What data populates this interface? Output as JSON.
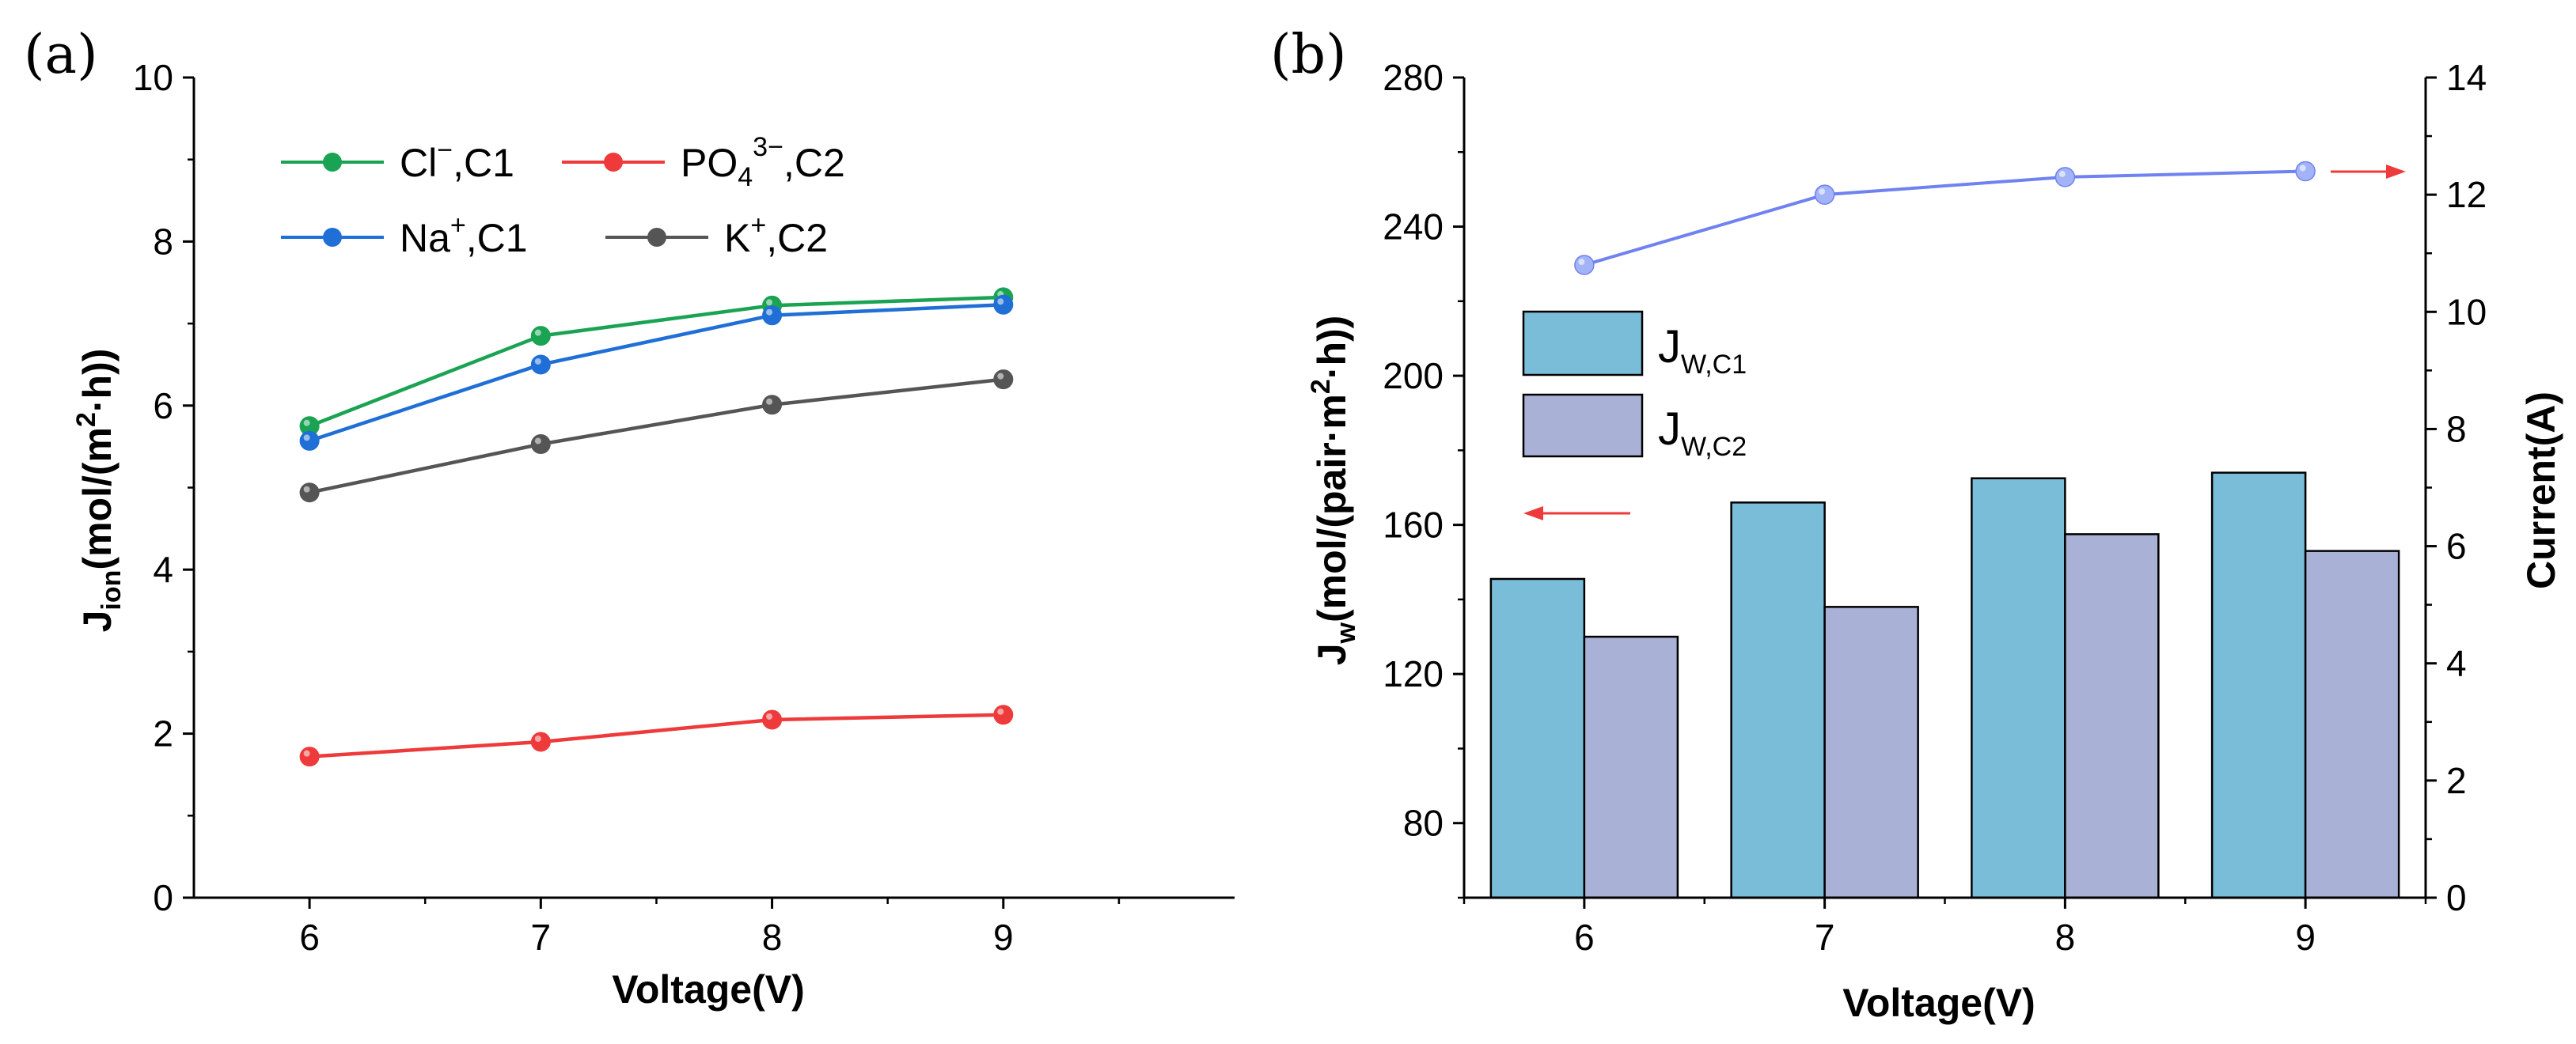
{
  "panel_a": {
    "label": "(a)",
    "chart_data": {
      "type": "line",
      "x": [
        6,
        7,
        8,
        9
      ],
      "xlabel": "Voltage(V)",
      "ylabel_prefix": "J",
      "ylabel_sub": "ion",
      "ylabel_suffix": "(mol/(m",
      "ylabel_sup": "2",
      "ylabel_end": "·h))",
      "xlim": [
        5.5,
        10
      ],
      "ylim": [
        0,
        10
      ],
      "xticks": [
        "6",
        "7",
        "8",
        "9"
      ],
      "yticks": [
        "0",
        "2",
        "4",
        "6",
        "8",
        "10"
      ],
      "series": [
        {
          "name": "Cl⁻,C1",
          "ion": "Cl",
          "sup": "−",
          "sub": "",
          "suffix": ",C1",
          "color": "#1aa352",
          "values": [
            5.75,
            6.85,
            7.22,
            7.32
          ]
        },
        {
          "name": "PO₄³⁻,C2",
          "ion": "PO",
          "sup": "3−",
          "sub": "4",
          "suffix": ",C2",
          "color": "#ee3a3a",
          "values": [
            1.72,
            1.9,
            2.17,
            2.23
          ]
        },
        {
          "name": "Na⁺,C1",
          "ion": "Na",
          "sup": "+",
          "sub": "",
          "suffix": ",C1",
          "color": "#1f6fd6",
          "values": [
            5.57,
            6.5,
            7.1,
            7.23
          ]
        },
        {
          "name": "K⁺,C2",
          "ion": "K",
          "sup": "+",
          "sub": "",
          "suffix": ",C2",
          "color": "#555555",
          "values": [
            4.94,
            5.53,
            6.01,
            6.32
          ]
        }
      ]
    }
  },
  "panel_b": {
    "label": "(b)",
    "chart_data": {
      "type": "bar",
      "categories": [
        "6",
        "7",
        "8",
        "9"
      ],
      "xlabel": "Voltage(V)",
      "ylabel_prefix": "J",
      "ylabel_sub": "w",
      "ylabel_suffix": "(mol/(pair·m",
      "ylabel_sup": "2",
      "ylabel_end": "·h))",
      "y2label": "Current(A)",
      "ylim": [
        60,
        280
      ],
      "yticks": [
        "80",
        "120",
        "160",
        "200",
        "240",
        "280"
      ],
      "y2lim": [
        0,
        14
      ],
      "y2ticks": [
        "0",
        "2",
        "4",
        "6",
        "8",
        "10",
        "12",
        "14"
      ],
      "series": [
        {
          "name": "J_W,C1",
          "main": "J",
          "sub": "W,C1",
          "color": "#79bdd8",
          "values": [
            145.5,
            166,
            172.5,
            174
          ]
        },
        {
          "name": "J_W,C2",
          "main": "J",
          "sub": "W,C2",
          "color": "#a9b1d6",
          "values": [
            130,
            138,
            157.5,
            153
          ]
        }
      ],
      "line_series": {
        "name": "Current",
        "color": "#6f82f0",
        "values": [
          10.8,
          12.0,
          12.3,
          12.4
        ]
      }
    }
  }
}
